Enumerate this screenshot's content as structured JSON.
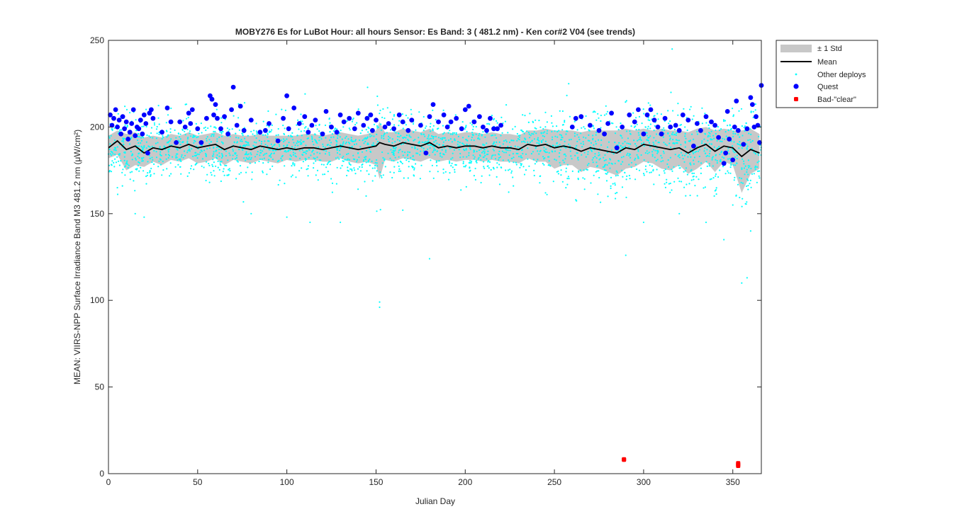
{
  "chart_data": {
    "type": "scatter",
    "title": "MOBY276   Es for LuBot  Hour: all hours  Sensor: Es Band: 3 ( 481.2 nm)  - Ken cor#2 V04 (see trends)",
    "xlabel": "Julian Day",
    "ylabel": "MEAN: VIIRS-NPP Surface Irradiance Band M3 481.2 nm (μW/cm²)",
    "xlim": [
      0,
      366
    ],
    "ylim": [
      0,
      250
    ],
    "xticks": [
      0,
      50,
      100,
      150,
      200,
      250,
      300,
      350
    ],
    "yticks": [
      0,
      50,
      100,
      150,
      200,
      250
    ],
    "grid": false,
    "legend_position": "outside-top-right",
    "colors": {
      "std_band": "#c8c8c8",
      "mean": "#000000",
      "other": "#00ffff",
      "quest": "#0000ff",
      "bad": "#ff0000"
    },
    "legend": [
      {
        "key": "std",
        "label": "± 1 Std"
      },
      {
        "key": "mean",
        "label": "Mean"
      },
      {
        "key": "other",
        "label": "Other deploys"
      },
      {
        "key": "quest",
        "label": "Quest"
      },
      {
        "key": "bad",
        "label": "Bad-\"clear\""
      }
    ],
    "mean_std": {
      "x": [
        0,
        5,
        10,
        15,
        20,
        25,
        30,
        35,
        40,
        45,
        50,
        55,
        60,
        65,
        70,
        75,
        80,
        85,
        90,
        95,
        100,
        105,
        110,
        115,
        120,
        125,
        130,
        135,
        140,
        145,
        150,
        152,
        155,
        160,
        165,
        170,
        175,
        180,
        185,
        190,
        195,
        200,
        205,
        210,
        215,
        220,
        225,
        230,
        235,
        240,
        245,
        250,
        255,
        260,
        265,
        270,
        275,
        280,
        285,
        290,
        295,
        300,
        305,
        310,
        315,
        320,
        325,
        330,
        335,
        340,
        345,
        350,
        355,
        360,
        365
      ],
      "mean": [
        188,
        192,
        187,
        189,
        185,
        188,
        187,
        189,
        188,
        190,
        188,
        189,
        190,
        187,
        189,
        188,
        187,
        189,
        188,
        187,
        188,
        187,
        188,
        188,
        187,
        188,
        189,
        188,
        187,
        188,
        189,
        191,
        190,
        189,
        191,
        190,
        189,
        191,
        188,
        189,
        188,
        189,
        189,
        188,
        189,
        188,
        188,
        187,
        190,
        189,
        190,
        188,
        189,
        188,
        186,
        188,
        187,
        186,
        185,
        188,
        187,
        190,
        189,
        188,
        187,
        188,
        185,
        188,
        190,
        186,
        189,
        188,
        183,
        187,
        185
      ],
      "lower": [
        182,
        184,
        175,
        178,
        177,
        180,
        178,
        181,
        180,
        182,
        179,
        180,
        182,
        178,
        181,
        180,
        179,
        181,
        180,
        179,
        181,
        180,
        181,
        181,
        180,
        180,
        182,
        180,
        179,
        180,
        178,
        170,
        181,
        180,
        182,
        181,
        180,
        182,
        180,
        181,
        180,
        181,
        181,
        180,
        181,
        180,
        180,
        179,
        182,
        180,
        180,
        176,
        178,
        178,
        174,
        177,
        176,
        174,
        172,
        176,
        177,
        180,
        179,
        176,
        175,
        178,
        173,
        176,
        180,
        174,
        180,
        178,
        162,
        173,
        176
      ],
      "upper": [
        195,
        198,
        196,
        197,
        194,
        195,
        194,
        196,
        195,
        197,
        195,
        196,
        197,
        195,
        196,
        195,
        195,
        196,
        195,
        195,
        195,
        195,
        196,
        196,
        195,
        196,
        197,
        196,
        195,
        196,
        198,
        203,
        197,
        197,
        199,
        198,
        197,
        199,
        196,
        197,
        196,
        197,
        197,
        196,
        197,
        196,
        196,
        195,
        198,
        198,
        199,
        198,
        198,
        198,
        197,
        198,
        198,
        198,
        198,
        199,
        198,
        199,
        198,
        199,
        198,
        198,
        197,
        199,
        200,
        198,
        199,
        198,
        198,
        199,
        196
      ]
    },
    "other_deploys": {
      "description_rule": "dense cloud around the mean (~175-205), sparse outliers 140-227",
      "count": 2600,
      "outliers": [
        [
          152,
          99
        ],
        [
          152,
          96
        ],
        [
          290,
          126
        ],
        [
          355,
          110
        ],
        [
          358,
          113
        ],
        [
          113,
          145
        ],
        [
          130,
          145
        ],
        [
          180,
          124
        ],
        [
          360,
          140
        ],
        [
          345,
          135
        ],
        [
          5,
          165
        ],
        [
          15,
          150
        ],
        [
          20,
          148
        ],
        [
          245,
          162
        ],
        [
          262,
          158
        ],
        [
          280,
          160
        ],
        [
          300,
          145
        ],
        [
          320,
          150
        ],
        [
          335,
          145
        ],
        [
          350,
          155
        ],
        [
          80,
          150
        ],
        [
          100,
          148
        ],
        [
          165,
          152
        ],
        [
          227,
          166
        ],
        [
          258,
          225
        ],
        [
          316,
          245
        ]
      ]
    },
    "quest": {
      "points": [
        [
          1,
          207
        ],
        [
          2,
          201
        ],
        [
          3,
          205
        ],
        [
          4,
          210
        ],
        [
          5,
          200
        ],
        [
          6,
          204
        ],
        [
          7,
          196
        ],
        [
          8,
          206
        ],
        [
          9,
          199
        ],
        [
          10,
          203
        ],
        [
          11,
          193
        ],
        [
          12,
          197
        ],
        [
          13,
          202
        ],
        [
          14,
          210
        ],
        [
          15,
          195
        ],
        [
          16,
          200
        ],
        [
          17,
          199
        ],
        [
          18,
          204
        ],
        [
          19,
          196
        ],
        [
          20,
          207
        ],
        [
          21,
          202
        ],
        [
          22,
          185
        ],
        [
          23,
          208
        ],
        [
          24,
          210
        ],
        [
          25,
          205
        ],
        [
          30,
          197
        ],
        [
          33,
          211
        ],
        [
          35,
          203
        ],
        [
          38,
          191
        ],
        [
          40,
          203
        ],
        [
          43,
          200
        ],
        [
          45,
          208
        ],
        [
          46,
          202
        ],
        [
          47,
          210
        ],
        [
          50,
          199
        ],
        [
          52,
          191
        ],
        [
          55,
          205
        ],
        [
          57,
          218
        ],
        [
          58,
          216
        ],
        [
          59,
          207
        ],
        [
          60,
          213
        ],
        [
          61,
          205
        ],
        [
          63,
          199
        ],
        [
          65,
          206
        ],
        [
          67,
          196
        ],
        [
          69,
          210
        ],
        [
          70,
          223
        ],
        [
          72,
          201
        ],
        [
          74,
          212
        ],
        [
          76,
          198
        ],
        [
          80,
          204
        ],
        [
          85,
          197
        ],
        [
          88,
          198
        ],
        [
          90,
          202
        ],
        [
          95,
          192
        ],
        [
          98,
          205
        ],
        [
          100,
          218
        ],
        [
          101,
          199
        ],
        [
          104,
          211
        ],
        [
          107,
          202
        ],
        [
          110,
          206
        ],
        [
          112,
          197
        ],
        [
          114,
          201
        ],
        [
          116,
          204
        ],
        [
          120,
          196
        ],
        [
          122,
          209
        ],
        [
          125,
          200
        ],
        [
          128,
          197
        ],
        [
          130,
          207
        ],
        [
          132,
          203
        ],
        [
          135,
          205
        ],
        [
          138,
          199
        ],
        [
          140,
          208
        ],
        [
          143,
          201
        ],
        [
          145,
          205
        ],
        [
          147,
          207
        ],
        [
          148,
          198
        ],
        [
          150,
          204
        ],
        [
          155,
          200
        ],
        [
          157,
          202
        ],
        [
          160,
          199
        ],
        [
          163,
          207
        ],
        [
          165,
          203
        ],
        [
          168,
          198
        ],
        [
          170,
          204
        ],
        [
          175,
          201
        ],
        [
          178,
          185
        ],
        [
          180,
          206
        ],
        [
          182,
          213
        ],
        [
          185,
          203
        ],
        [
          188,
          207
        ],
        [
          190,
          200
        ],
        [
          192,
          203
        ],
        [
          195,
          205
        ],
        [
          198,
          199
        ],
        [
          200,
          210
        ],
        [
          202,
          212
        ],
        [
          205,
          203
        ],
        [
          208,
          206
        ],
        [
          210,
          200
        ],
        [
          212,
          198
        ],
        [
          214,
          205
        ],
        [
          216,
          199
        ],
        [
          218,
          199
        ],
        [
          220,
          201
        ],
        [
          260,
          200
        ],
        [
          262,
          205
        ],
        [
          265,
          206
        ],
        [
          270,
          201
        ],
        [
          275,
          198
        ],
        [
          278,
          196
        ],
        [
          280,
          202
        ],
        [
          282,
          208
        ],
        [
          285,
          188
        ],
        [
          288,
          200
        ],
        [
          292,
          207
        ],
        [
          295,
          203
        ],
        [
          297,
          210
        ],
        [
          300,
          196
        ],
        [
          302,
          207
        ],
        [
          304,
          210
        ],
        [
          306,
          204
        ],
        [
          308,
          200
        ],
        [
          310,
          196
        ],
        [
          312,
          205
        ],
        [
          315,
          200
        ],
        [
          318,
          201
        ],
        [
          320,
          198
        ],
        [
          322,
          207
        ],
        [
          325,
          204
        ],
        [
          328,
          189
        ],
        [
          330,
          202
        ],
        [
          332,
          198
        ],
        [
          335,
          206
        ],
        [
          338,
          203
        ],
        [
          340,
          201
        ],
        [
          342,
          194
        ],
        [
          345,
          179
        ],
        [
          346,
          185
        ],
        [
          347,
          209
        ],
        [
          348,
          193
        ],
        [
          350,
          181
        ],
        [
          351,
          200
        ],
        [
          352,
          215
        ],
        [
          353,
          198
        ],
        [
          356,
          190
        ],
        [
          358,
          199
        ],
        [
          360,
          217
        ],
        [
          361,
          213
        ],
        [
          362,
          200
        ],
        [
          363,
          206
        ],
        [
          364,
          201
        ],
        [
          365,
          191
        ],
        [
          366,
          224
        ]
      ]
    },
    "bad_clear": {
      "points": [
        [
          289,
          8
        ],
        [
          289,
          8.3
        ],
        [
          353,
          6
        ],
        [
          353,
          4.5
        ],
        [
          353,
          5.2
        ]
      ]
    }
  }
}
